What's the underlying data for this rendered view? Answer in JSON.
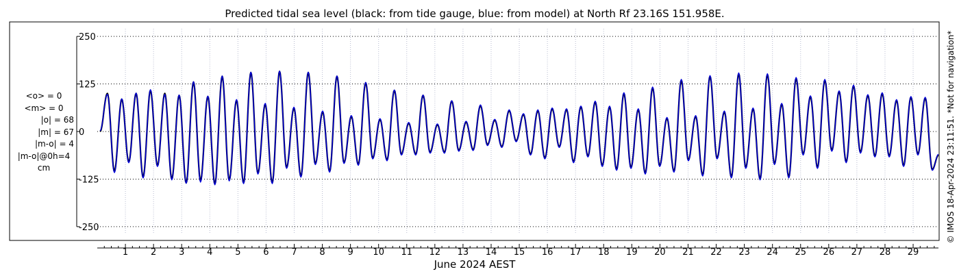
{
  "chart_data": {
    "type": "line",
    "title": "Predicted tidal sea level (black: from tide gauge, blue: from model) at North Rf 23.16S 151.958E.",
    "xlabel": "June 2024 AEST",
    "ylabel": "",
    "xlim": [
      0.0,
      29.9
    ],
    "ylim": [
      -270,
      270
    ],
    "yticks": [
      -250,
      -125,
      0,
      125,
      250
    ],
    "xticks": [
      1,
      2,
      3,
      4,
      5,
      6,
      7,
      8,
      9,
      10,
      11,
      12,
      13,
      14,
      15,
      16,
      17,
      18,
      19,
      20,
      21,
      22,
      23,
      24,
      25,
      26,
      27,
      28,
      29
    ],
    "grid": true,
    "legend": "none",
    "series": [
      {
        "color": "#000000",
        "x": [
          0.1,
          0.36,
          0.61,
          0.87,
          1.12,
          1.38,
          1.63,
          1.89,
          2.14,
          2.4,
          2.65,
          2.91,
          3.16,
          3.42,
          3.67,
          3.93,
          4.18,
          4.44,
          4.69,
          4.95,
          5.2,
          5.46,
          5.71,
          5.97,
          6.22,
          6.48,
          6.73,
          6.99,
          7.24,
          7.5,
          7.75,
          8.01,
          8.26,
          8.52,
          8.77,
          9.03,
          9.28,
          9.54,
          9.79,
          10.05,
          10.3,
          10.56,
          10.81,
          11.07,
          11.32,
          11.58,
          11.83,
          12.09,
          12.34,
          12.6,
          12.85,
          13.11,
          13.36,
          13.62,
          13.87,
          14.13,
          14.38,
          14.64,
          14.89,
          15.15,
          15.4,
          15.66,
          15.91,
          16.17,
          16.42,
          16.68,
          16.93,
          17.19,
          17.44,
          17.7,
          17.95,
          18.21,
          18.46,
          18.72,
          18.97,
          19.23,
          19.48,
          19.74,
          19.99,
          20.25,
          20.5,
          20.76,
          21.01,
          21.27,
          21.52,
          21.78,
          22.03,
          22.29,
          22.54,
          22.8,
          23.05,
          23.31,
          23.56,
          23.82,
          24.07,
          24.33,
          24.58,
          24.84,
          25.09,
          25.35,
          25.6,
          25.86,
          26.11,
          26.37,
          26.62,
          26.88,
          27.13,
          27.39,
          27.64,
          27.9,
          28.15,
          28.41,
          28.66,
          28.92,
          29.17,
          29.43,
          29.68,
          29.9
        ],
        "y": [
          0,
          100,
          -105,
          85,
          -80,
          100,
          -120,
          108,
          -90,
          100,
          -125,
          95,
          -135,
          130,
          -130,
          92,
          -138,
          145,
          -128,
          82,
          -135,
          155,
          -110,
          72,
          -135,
          158,
          -95,
          62,
          -118,
          155,
          -85,
          52,
          -105,
          145,
          -82,
          40,
          -87,
          128,
          -70,
          32,
          -75,
          108,
          -60,
          22,
          -60,
          95,
          -55,
          18,
          -55,
          80,
          -50,
          25,
          -48,
          68,
          -35,
          30,
          -40,
          55,
          -25,
          45,
          -60,
          55,
          -70,
          60,
          -40,
          58,
          -80,
          65,
          -65,
          78,
          -90,
          65,
          -100,
          100,
          -95,
          58,
          -110,
          115,
          -90,
          35,
          -105,
          135,
          -75,
          40,
          -115,
          145,
          -70,
          52,
          -120,
          152,
          -95,
          60,
          -125,
          150,
          -85,
          72,
          -120,
          140,
          -60,
          92,
          -95,
          135,
          -50,
          105,
          -80,
          120,
          -55,
          95,
          -65,
          100,
          -65,
          82,
          -90,
          90,
          -60,
          88,
          -100,
          -62
        ]
      },
      {
        "color": "#0000dd",
        "x": [
          0.1,
          0.36,
          0.61,
          0.87,
          1.12,
          1.38,
          1.63,
          1.89,
          2.14,
          2.4,
          2.65,
          2.91,
          3.16,
          3.42,
          3.67,
          3.93,
          4.18,
          4.44,
          4.69,
          4.95,
          5.2,
          5.46,
          5.71,
          5.97,
          6.22,
          6.48,
          6.73,
          6.99,
          7.24,
          7.5,
          7.75,
          8.01,
          8.26,
          8.52,
          8.77,
          9.03,
          9.28,
          9.54,
          9.79,
          10.05,
          10.3,
          10.56,
          10.81,
          11.07,
          11.32,
          11.58,
          11.83,
          12.09,
          12.34,
          12.6,
          12.85,
          13.11,
          13.36,
          13.62,
          13.87,
          14.13,
          14.38,
          14.64,
          14.89,
          15.15,
          15.4,
          15.66,
          15.91,
          16.17,
          16.42,
          16.68,
          16.93,
          17.19,
          17.44,
          17.7,
          17.95,
          18.21,
          18.46,
          18.72,
          18.97,
          19.23,
          19.48,
          19.74,
          19.99,
          20.25,
          20.5,
          20.76,
          21.01,
          21.27,
          21.52,
          21.78,
          22.03,
          22.29,
          22.54,
          22.8,
          23.05,
          23.31,
          23.56,
          23.82,
          24.07,
          24.33,
          24.58,
          24.84,
          25.09,
          25.35,
          25.6,
          25.86,
          26.11,
          26.37,
          26.62,
          26.88,
          27.13,
          27.39,
          27.64,
          27.9,
          28.15,
          28.41,
          28.66,
          28.92,
          29.17,
          29.43,
          29.68,
          29.9
        ],
        "y": [
          2,
          98,
          -108,
          86,
          -82,
          101,
          -122,
          110,
          -92,
          98,
          -127,
          96,
          -136,
          131,
          -133,
          93,
          -140,
          146,
          -130,
          84,
          -137,
          156,
          -112,
          74,
          -137,
          159,
          -97,
          64,
          -120,
          156,
          -87,
          54,
          -107,
          146,
          -84,
          42,
          -89,
          129,
          -72,
          34,
          -77,
          109,
          -62,
          24,
          -62,
          96,
          -57,
          20,
          -57,
          81,
          -52,
          27,
          -50,
          70,
          -37,
          32,
          -42,
          57,
          -27,
          47,
          -62,
          57,
          -72,
          62,
          -42,
          60,
          -82,
          67,
          -67,
          80,
          -92,
          67,
          -102,
          102,
          -97,
          60,
          -112,
          117,
          -92,
          37,
          -107,
          137,
          -77,
          42,
          -117,
          147,
          -72,
          54,
          -122,
          154,
          -97,
          62,
          -127,
          152,
          -87,
          74,
          -122,
          142,
          -62,
          94,
          -97,
          137,
          -52,
          107,
          -82,
          122,
          -57,
          97,
          -67,
          102,
          -67,
          84,
          -92,
          92,
          -62,
          90,
          -102,
          -60
        ]
      }
    ]
  },
  "stats": {
    "mean_obs": "<o> = 0",
    "mean_model": "<m> = 0",
    "abs_obs": "|o| = 68",
    "abs_model": "|m| = 67",
    "abs_diff": "|m-o| = 4",
    "abs_diff_0h": "|m-o|@0h=4",
    "unit": "cm"
  },
  "side_note": "© IMOS 18-Apr-2024 23:11:51. *Not for navigation*"
}
